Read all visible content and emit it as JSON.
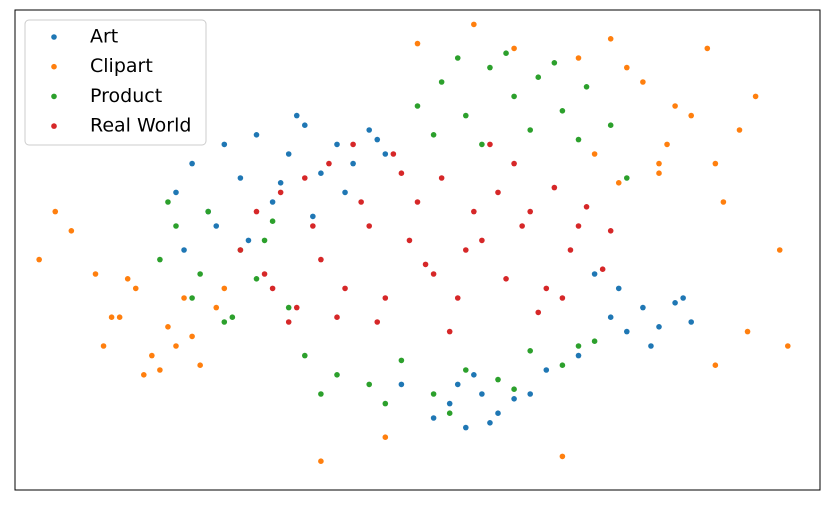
{
  "chart_data": {
    "type": "scatter",
    "xlim": [
      0,
      100
    ],
    "ylim": [
      0,
      100
    ],
    "legend": "upper left",
    "series": [
      {
        "name": "Art",
        "color": "#1f77b4",
        "x": [
          20,
          22,
          24,
          26,
          28,
          30,
          32,
          34,
          36,
          38,
          40,
          42,
          44,
          46,
          25,
          29,
          33,
          37,
          41,
          45,
          52,
          54,
          56,
          58,
          60,
          62,
          55,
          59,
          74,
          76,
          78,
          80,
          82,
          84,
          75,
          79,
          83,
          66,
          70,
          48,
          21,
          35,
          64,
          72,
          57
        ],
        "values": [
          62,
          68,
          58,
          72,
          65,
          74,
          60,
          70,
          76,
          66,
          72,
          68,
          75,
          70,
          55,
          52,
          64,
          57,
          62,
          73,
          15,
          18,
          13,
          20,
          16,
          19,
          22,
          14,
          36,
          33,
          38,
          34,
          39,
          35,
          42,
          30,
          40,
          25,
          28,
          22,
          50,
          78,
          20,
          45,
          24
        ]
      },
      {
        "name": "Clipart",
        "color": "#ff7f0e",
        "x": [
          11,
          13,
          15,
          17,
          19,
          21,
          23,
          25,
          14,
          18,
          22,
          26,
          12,
          16,
          20,
          70,
          74,
          78,
          82,
          86,
          90,
          72,
          76,
          80,
          84,
          88,
          92,
          75,
          81,
          87,
          5,
          7,
          10,
          95,
          96,
          91,
          38,
          46,
          68,
          87,
          3,
          50,
          57,
          62,
          80
        ],
        "values": [
          30,
          36,
          42,
          28,
          34,
          40,
          26,
          38,
          44,
          25,
          32,
          42,
          36,
          24,
          30,
          90,
          94,
          85,
          80,
          92,
          75,
          70,
          88,
          66,
          78,
          60,
          82,
          64,
          72,
          68,
          58,
          54,
          45,
          50,
          30,
          33,
          6,
          11,
          7,
          26,
          48,
          93,
          97,
          92,
          68
        ]
      },
      {
        "name": "Product",
        "color": "#2ca02c",
        "x": [
          50,
          53,
          56,
          59,
          62,
          65,
          68,
          71,
          74,
          52,
          58,
          64,
          70,
          55,
          61,
          67,
          18,
          20,
          22,
          24,
          26,
          28,
          30,
          32,
          34,
          19,
          23,
          27,
          31,
          36,
          40,
          44,
          48,
          52,
          56,
          60,
          64,
          68,
          72,
          38,
          46,
          54,
          62,
          70,
          76
        ],
        "values": [
          80,
          85,
          78,
          88,
          82,
          86,
          79,
          84,
          76,
          74,
          72,
          75,
          73,
          90,
          91,
          89,
          48,
          55,
          40,
          58,
          35,
          50,
          44,
          56,
          38,
          60,
          45,
          36,
          52,
          28,
          24,
          22,
          27,
          20,
          25,
          23,
          29,
          26,
          31,
          20,
          18,
          16,
          21,
          30,
          65
        ]
      },
      {
        "name": "Real World",
        "color": "#d62728",
        "x": [
          28,
          31,
          33,
          35,
          37,
          39,
          41,
          43,
          45,
          47,
          49,
          51,
          53,
          55,
          57,
          59,
          61,
          63,
          65,
          67,
          69,
          71,
          73,
          30,
          34,
          38,
          42,
          46,
          50,
          54,
          58,
          62,
          66,
          70,
          36,
          44,
          52,
          60,
          68,
          40,
          48,
          56,
          64,
          32,
          74
        ],
        "values": [
          50,
          45,
          62,
          38,
          55,
          68,
          42,
          60,
          35,
          70,
          52,
          47,
          65,
          40,
          58,
          72,
          44,
          55,
          37,
          63,
          50,
          59,
          46,
          58,
          35,
          48,
          72,
          40,
          60,
          33,
          52,
          68,
          42,
          55,
          65,
          55,
          45,
          62,
          40,
          36,
          66,
          50,
          58,
          42,
          54
        ]
      }
    ]
  }
}
